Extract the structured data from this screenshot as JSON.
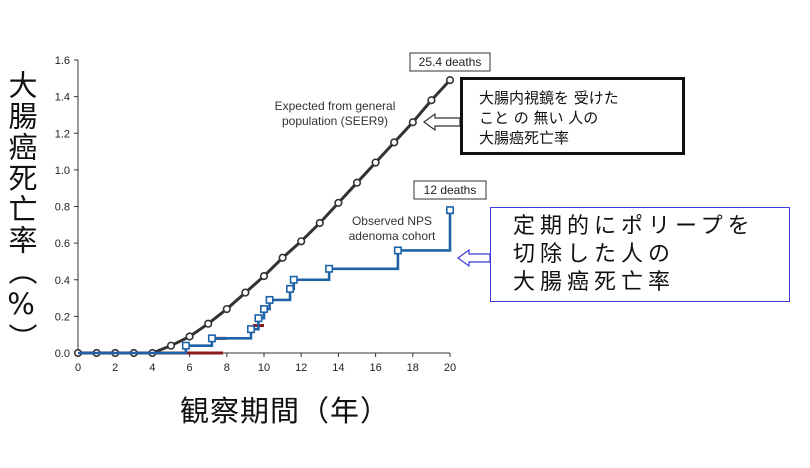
{
  "chart_data": {
    "type": "line",
    "x_ticks": [
      "0",
      "2",
      "4",
      "6",
      "8",
      "10",
      "12",
      "14",
      "16",
      "18",
      "20"
    ],
    "y_ticks": [
      "0.0",
      "0.2",
      "0.4",
      "0.6",
      "0.8",
      "1.0",
      "1.2",
      "1.4",
      "1.6"
    ],
    "xlim": [
      0,
      20
    ],
    "ylim": [
      0,
      1.6
    ],
    "xlabel": "観察期間（年）",
    "ylabel": "大腸癌死亡率（%）",
    "series": [
      {
        "name": "Expected from general population (SEER9)",
        "style": "circle-markers",
        "color": "#333333",
        "points": [
          [
            0,
            0
          ],
          [
            1,
            0
          ],
          [
            2,
            0
          ],
          [
            3,
            0
          ],
          [
            4,
            0
          ],
          [
            5,
            0.04
          ],
          [
            6,
            0.09
          ],
          [
            7,
            0.16
          ],
          [
            8,
            0.24
          ],
          [
            9,
            0.33
          ],
          [
            10,
            0.42
          ],
          [
            11,
            0.52
          ],
          [
            12,
            0.61
          ],
          [
            13,
            0.71
          ],
          [
            14,
            0.82
          ],
          [
            15,
            0.93
          ],
          [
            16,
            1.04
          ],
          [
            17,
            1.15
          ],
          [
            18,
            1.26
          ],
          [
            19,
            1.38
          ],
          [
            20,
            1.49
          ]
        ]
      },
      {
        "name": "Observed NPS adenoma cohort",
        "style": "step",
        "color": "#1e62a8",
        "points": [
          [
            0,
            0
          ],
          [
            5.8,
            0
          ],
          [
            5.8,
            0.04
          ],
          [
            7.2,
            0.04
          ],
          [
            7.2,
            0.08
          ],
          [
            9.3,
            0.08
          ],
          [
            9.3,
            0.13
          ],
          [
            9.7,
            0.13
          ],
          [
            9.7,
            0.19
          ],
          [
            10.0,
            0.19
          ],
          [
            10.0,
            0.24
          ],
          [
            10.3,
            0.24
          ],
          [
            10.3,
            0.29
          ],
          [
            11.4,
            0.29
          ],
          [
            11.4,
            0.35
          ],
          [
            11.6,
            0.35
          ],
          [
            11.6,
            0.4
          ],
          [
            13.5,
            0.4
          ],
          [
            13.5,
            0.46
          ],
          [
            17.2,
            0.46
          ],
          [
            17.2,
            0.56
          ],
          [
            20.0,
            0.56
          ],
          [
            20.0,
            0.78
          ]
        ],
        "markers": [
          [
            5.8,
            0.04
          ],
          [
            7.2,
            0.08
          ],
          [
            9.3,
            0.13
          ],
          [
            9.7,
            0.19
          ],
          [
            10.0,
            0.24
          ],
          [
            10.3,
            0.29
          ],
          [
            11.4,
            0.35
          ],
          [
            11.6,
            0.4
          ],
          [
            13.5,
            0.46
          ],
          [
            17.2,
            0.56
          ],
          [
            20.0,
            0.78
          ]
        ]
      }
    ],
    "red_marks": [
      [
        [
          0,
          0
        ],
        [
          7.8,
          0
        ]
      ],
      [
        [
          7.4,
          0.08
        ],
        [
          8.0,
          0.08
        ]
      ],
      [
        [
          9.4,
          0.15
        ],
        [
          10.0,
          0.15
        ]
      ]
    ],
    "annotations": {
      "expected_label_line1": "Expected from general",
      "expected_label_line2": "population (SEER9)",
      "observed_label_line1": "Observed NPS",
      "observed_label_line2": "adenoma cohort",
      "deaths_expected": "25.4 deaths",
      "deaths_observed": "12 deaths"
    }
  },
  "callouts": {
    "black_box_lines": [
      "大腸内視鏡を 受けた",
      "こと の 無い 人の",
      "大腸癌死亡率"
    ],
    "blue_box_lines": [
      "定期的にポリープを",
      "切除した人の",
      "大腸癌死亡率"
    ]
  },
  "labels": {
    "ylabel": "大腸癌死亡率（%）",
    "xlabel": "観察期間（年）"
  }
}
